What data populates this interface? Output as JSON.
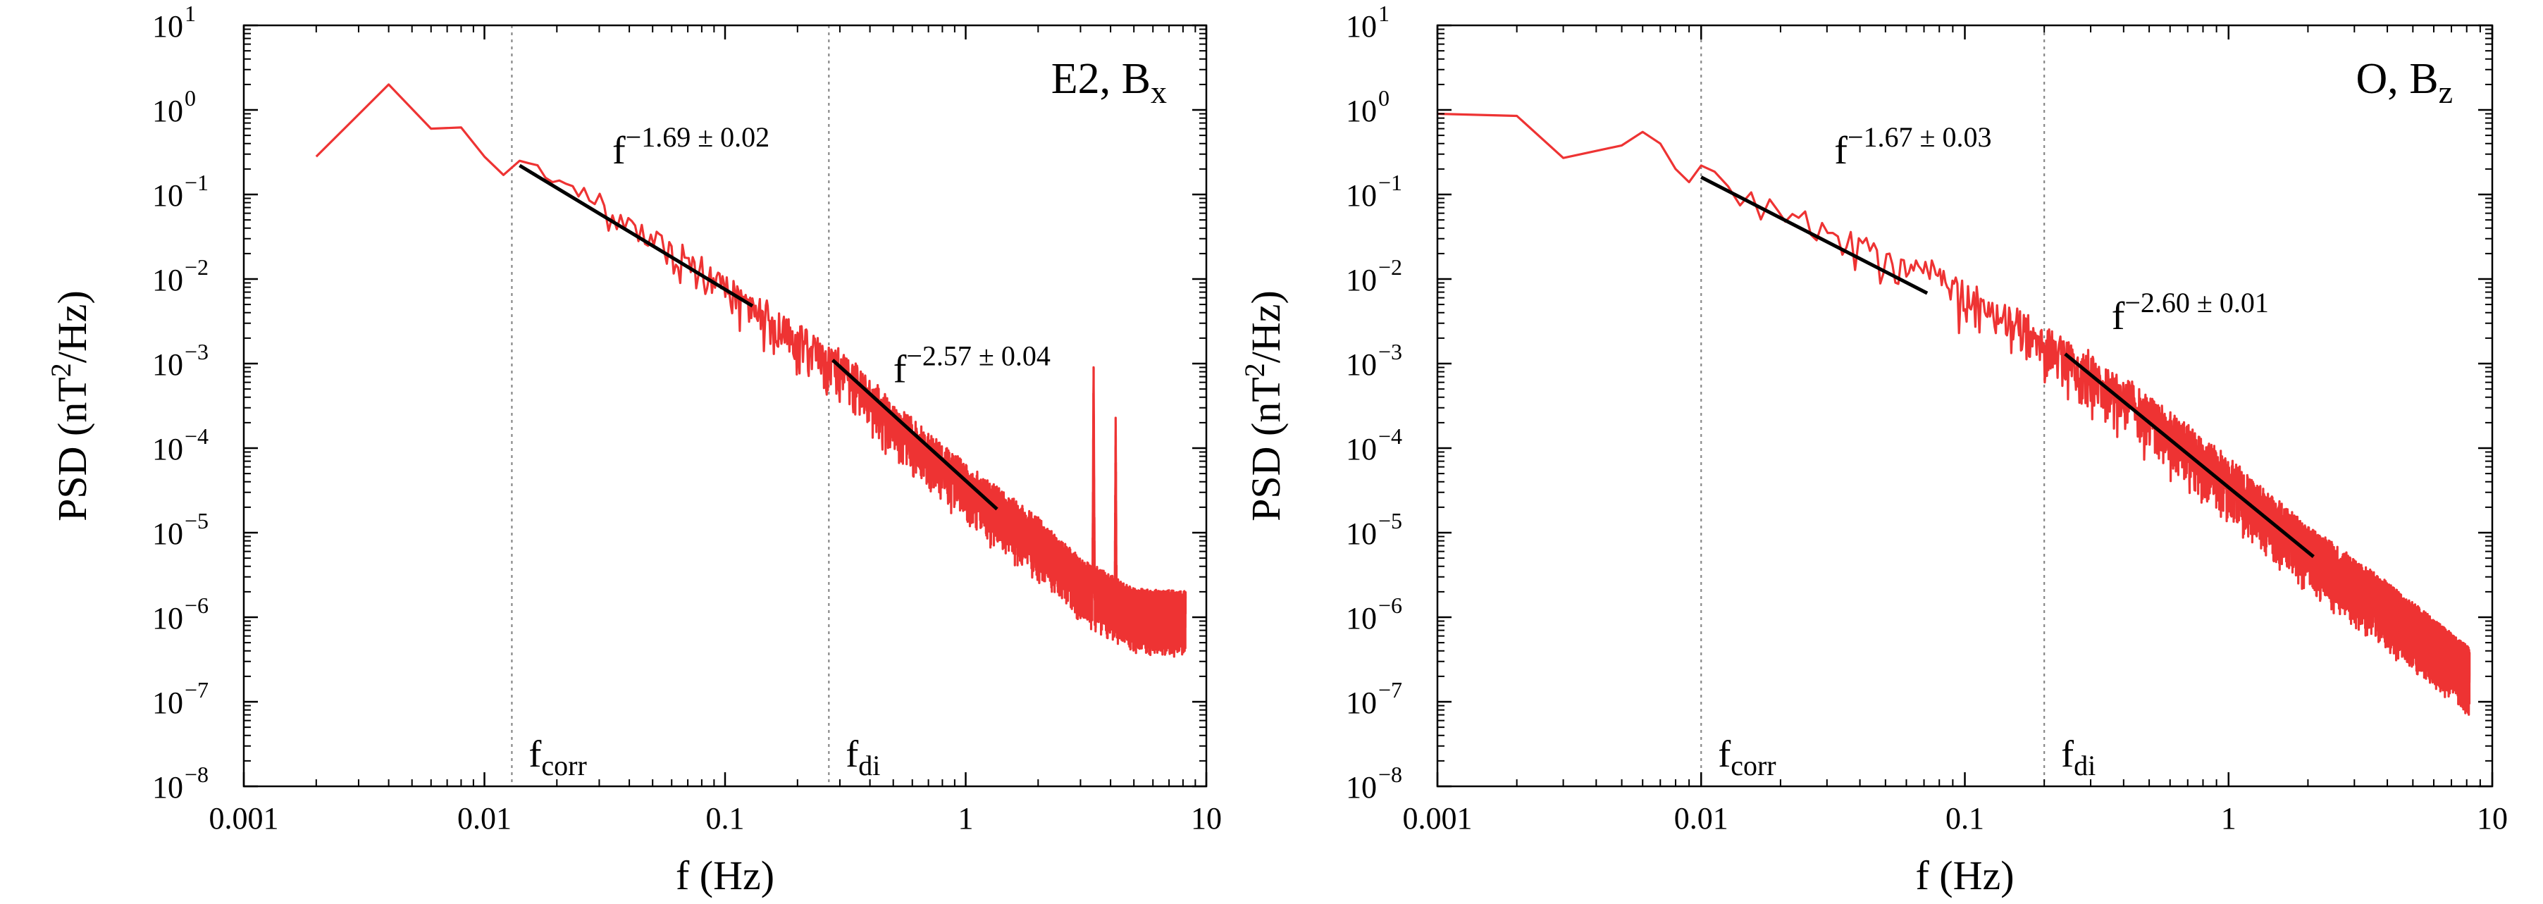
{
  "figure": {
    "background": "#ffffff",
    "spectrum_color": "#ee3333",
    "fit_color": "#000000",
    "marker_color": "#888888",
    "axis_color": "#000000"
  },
  "chart_data": [
    {
      "type": "line",
      "title": "",
      "panel_label": {
        "main": "E2, B",
        "sub": "x"
      },
      "xlabel": "f (Hz)",
      "ylabel": {
        "pre": "PSD (nT",
        "sup": "2",
        "post": "/Hz)"
      },
      "xscale": "log",
      "yscale": "log",
      "xlim": [
        0.001,
        10
      ],
      "ylim_exp": [
        -8,
        1
      ],
      "x_ticks": [
        {
          "value": 0.001,
          "label": "0.001"
        },
        {
          "value": 0.01,
          "label": "0.01"
        },
        {
          "value": 0.1,
          "label": "0.1"
        },
        {
          "value": 1,
          "label": "1"
        },
        {
          "value": 10,
          "label": "10"
        }
      ],
      "y_ticks": [
        {
          "exp": 1,
          "base": "10",
          "sup": "1"
        },
        {
          "exp": 0,
          "base": "10",
          "sup": "0"
        },
        {
          "exp": -1,
          "base": "10",
          "sup": "−1"
        },
        {
          "exp": -2,
          "base": "10",
          "sup": "−2"
        },
        {
          "exp": -3,
          "base": "10",
          "sup": "−3"
        },
        {
          "exp": -4,
          "base": "10",
          "sup": "−4"
        },
        {
          "exp": -5,
          "base": "10",
          "sup": "−5"
        },
        {
          "exp": -6,
          "base": "10",
          "sup": "−6"
        },
        {
          "exp": -7,
          "base": "10",
          "sup": "−7"
        },
        {
          "exp": -8,
          "base": "10",
          "sup": "−8"
        }
      ],
      "spectrum": {
        "name": "PSD B_x (E2)",
        "f_min": 0.002,
        "f_max": 8.2,
        "anchors": [
          [
            0.002,
            0.28
          ],
          [
            0.004,
            2.0
          ],
          [
            0.006,
            0.6
          ],
          [
            0.008,
            0.62
          ],
          [
            0.01,
            0.28
          ],
          [
            0.012,
            0.17
          ],
          [
            0.014,
            0.25
          ],
          [
            0.02,
            0.16
          ],
          [
            0.05,
            0.035
          ],
          [
            0.1,
            0.008
          ],
          [
            0.2,
            0.0019
          ],
          [
            0.3,
            0.0009
          ],
          [
            0.5,
            0.00022
          ],
          [
            1,
            4e-05
          ],
          [
            2,
            9e-06
          ],
          [
            3,
            3e-06
          ],
          [
            5,
            1.3e-06
          ],
          [
            8.2,
            1.2e-06
          ]
        ],
        "peaks": [
          {
            "f": 3.4,
            "psd": 0.001
          },
          {
            "f": 4.2,
            "psd": 0.0002
          }
        ],
        "noise_dex": 0.42
      },
      "fits": [
        {
          "f_start": 0.014,
          "psd_start": 0.22,
          "f_end": 0.13,
          "psd_end": 0.0048,
          "label_main": "f",
          "label_sup": "−1.69 ± 0.02",
          "label_f": 0.034,
          "label_psd": 0.5
        },
        {
          "f_start": 0.28,
          "psd_start": 0.0011,
          "f_end": 1.35,
          "psd_end": 1.9e-05,
          "label_main": "f",
          "label_sup": "−2.57 ± 0.04",
          "label_f": 0.5,
          "label_psd": 0.0013
        }
      ],
      "markers": [
        {
          "f": 0.013,
          "label_main": "f",
          "label_sub": "corr"
        },
        {
          "f": 0.27,
          "label_main": "f",
          "label_sub": "di"
        }
      ]
    },
    {
      "type": "line",
      "title": "",
      "panel_label": {
        "main": "O, B",
        "sub": "z"
      },
      "xlabel": "f (Hz)",
      "ylabel": {
        "pre": "PSD (nT",
        "sup": "2",
        "post": "/Hz)"
      },
      "xscale": "log",
      "yscale": "log",
      "xlim": [
        0.001,
        10
      ],
      "ylim_exp": [
        -8,
        1
      ],
      "x_ticks": [
        {
          "value": 0.001,
          "label": "0.001"
        },
        {
          "value": 0.01,
          "label": "0.01"
        },
        {
          "value": 0.1,
          "label": "0.1"
        },
        {
          "value": 1,
          "label": "1"
        },
        {
          "value": 10,
          "label": "10"
        }
      ],
      "y_ticks": [
        {
          "exp": 1,
          "base": "10",
          "sup": "1"
        },
        {
          "exp": 0,
          "base": "10",
          "sup": "0"
        },
        {
          "exp": -1,
          "base": "10",
          "sup": "−1"
        },
        {
          "exp": -2,
          "base": "10",
          "sup": "−2"
        },
        {
          "exp": -3,
          "base": "10",
          "sup": "−3"
        },
        {
          "exp": -4,
          "base": "10",
          "sup": "−4"
        },
        {
          "exp": -5,
          "base": "10",
          "sup": "−5"
        },
        {
          "exp": -6,
          "base": "10",
          "sup": "−6"
        },
        {
          "exp": -7,
          "base": "10",
          "sup": "−7"
        },
        {
          "exp": -8,
          "base": "10",
          "sup": "−8"
        }
      ],
      "spectrum": {
        "name": "PSD B_z (O)",
        "f_min": 0.001,
        "f_max": 8.2,
        "anchors": [
          [
            0.001,
            0.9
          ],
          [
            0.002,
            0.85
          ],
          [
            0.003,
            0.27
          ],
          [
            0.005,
            0.38
          ],
          [
            0.006,
            0.55
          ],
          [
            0.007,
            0.4
          ],
          [
            0.008,
            0.2
          ],
          [
            0.009,
            0.14
          ],
          [
            0.01,
            0.22
          ],
          [
            0.015,
            0.1
          ],
          [
            0.03,
            0.035
          ],
          [
            0.07,
            0.012
          ],
          [
            0.1,
            0.006
          ],
          [
            0.2,
            0.0019
          ],
          [
            0.3,
            0.0008
          ],
          [
            0.5,
            0.00025
          ],
          [
            1,
            4.5e-05
          ],
          [
            2,
            7e-06
          ],
          [
            4,
            1.5e-06
          ],
          [
            8.2,
            2.5e-07
          ]
        ],
        "peaks": [],
        "noise_dex": 0.45
      },
      "fits": [
        {
          "f_start": 0.01,
          "psd_start": 0.16,
          "f_end": 0.072,
          "psd_end": 0.0068,
          "label_main": "f",
          "label_sup": "−1.67 ± 0.03",
          "label_f": 0.032,
          "label_psd": 0.5
        },
        {
          "f_start": 0.24,
          "psd_start": 0.0013,
          "f_end": 2.1,
          "psd_end": 5.2e-06,
          "label_main": "f",
          "label_sup": "−2.60 ± 0.01",
          "label_f": 0.36,
          "label_psd": 0.0055
        }
      ],
      "markers": [
        {
          "f": 0.01,
          "label_main": "f",
          "label_sub": "corr"
        },
        {
          "f": 0.2,
          "label_main": "f",
          "label_sub": "di"
        }
      ]
    }
  ]
}
